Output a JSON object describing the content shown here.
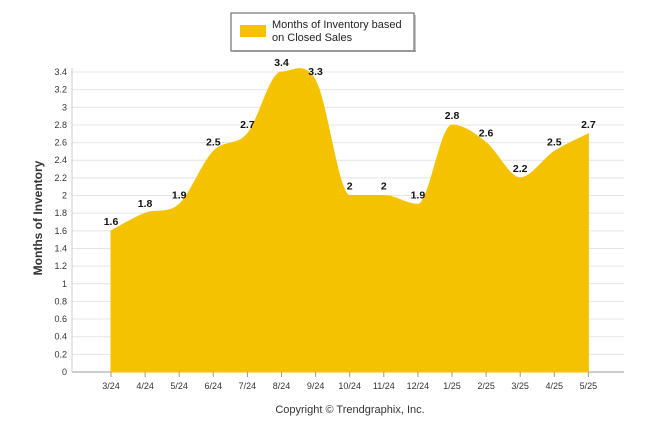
{
  "chart_data": {
    "type": "area",
    "categories": [
      "3/24",
      "4/24",
      "5/24",
      "6/24",
      "7/24",
      "8/24",
      "9/24",
      "10/24",
      "11/24",
      "12/24",
      "1/25",
      "2/25",
      "3/25",
      "4/25",
      "5/25"
    ],
    "series": [
      {
        "name": "Months of Inventory based on Closed Sales",
        "values": [
          1.6,
          1.8,
          1.9,
          2.5,
          2.7,
          3.4,
          3.3,
          2,
          2,
          1.9,
          2.8,
          2.6,
          2.2,
          2.5,
          2.7
        ],
        "color": "#f5c200"
      }
    ],
    "legend_lines": [
      "Months of Inventory based",
      "on Closed Sales"
    ],
    "legend_position": "top-center",
    "ylabel": "Months of Inventory",
    "xlabel": "",
    "ylim": [
      0,
      3.4
    ],
    "yticks": [
      "0",
      "0.2",
      "0.4",
      "0.6",
      "0.8",
      "1",
      "1.2",
      "1.4",
      "1.6",
      "1.8",
      "2",
      "2.2",
      "2.4",
      "2.6",
      "2.8",
      "3",
      "3.2",
      "3.4"
    ],
    "grid": "horizontal",
    "data_labels": true
  },
  "footer": "Copyright © Trendgraphix, Inc."
}
